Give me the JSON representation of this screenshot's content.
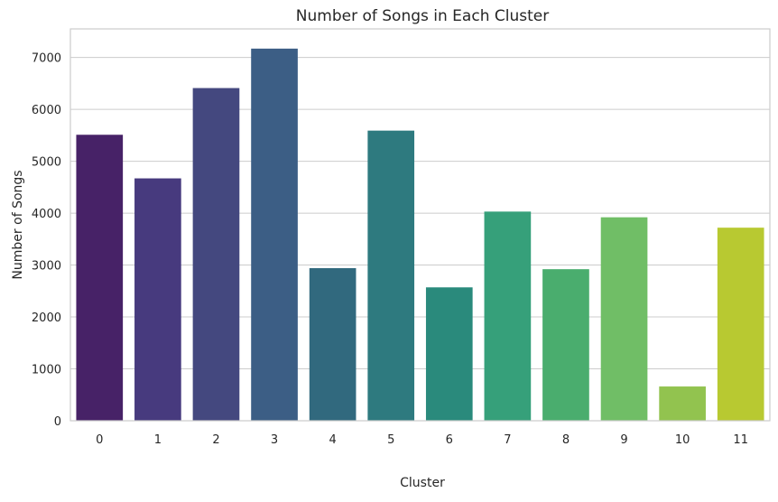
{
  "chart_data": {
    "type": "bar",
    "title": "Number of Songs in Each Cluster",
    "xlabel": "Cluster",
    "ylabel": "Number of Songs",
    "categories": [
      "0",
      "1",
      "2",
      "3",
      "4",
      "5",
      "6",
      "7",
      "8",
      "9",
      "10",
      "11"
    ],
    "values": [
      5510,
      4670,
      6410,
      7170,
      2940,
      5590,
      2570,
      4030,
      2920,
      3920,
      660,
      3720
    ],
    "ylim": [
      0,
      7550
    ],
    "yticks": [
      "0",
      "1000",
      "2000",
      "3000",
      "4000",
      "5000",
      "6000",
      "7000"
    ],
    "grid": "horizontal",
    "colors": [
      "#472267",
      "#473a7e",
      "#44487f",
      "#3c5e85",
      "#31697e",
      "#2e7a7f",
      "#2a8a7c",
      "#36a07a",
      "#4aad6e",
      "#70be66",
      "#92c34f",
      "#b8c931"
    ]
  }
}
